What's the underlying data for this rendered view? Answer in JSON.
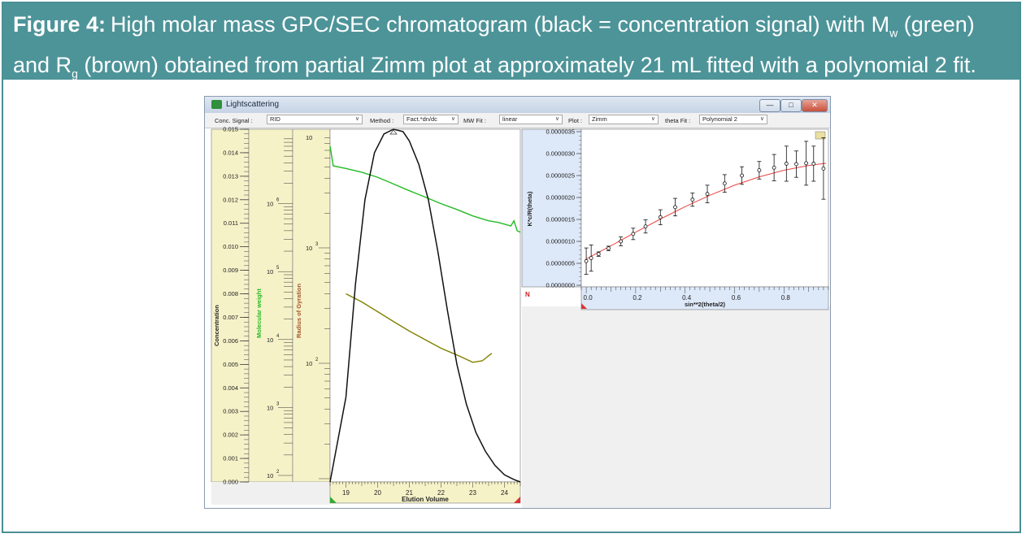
{
  "caption": {
    "label": "Figure 4:",
    "part1": "High molar mass GPC/SEC chromatogram (black = concentration signal) with M",
    "sub_w": "w",
    "part2": " (green)",
    "part3": "and R",
    "sub_g": "g",
    "part4": " (brown) obtained from partial Zimm plot at approximately 21 mL fitted with a polynomial 2 fit."
  },
  "window": {
    "title": "Lightscattering",
    "btn_min": "—",
    "btn_max": "□",
    "btn_close": "✕"
  },
  "toolbar": {
    "conc_label": "Conc. Signal :",
    "conc_value": "RID",
    "method_label": "Method :",
    "method_value": "Fact.*dn/dc",
    "mwfit_label": "MW Fit :",
    "mwfit_value": "linear",
    "plot_label": "Plot :",
    "plot_value": "Zimm",
    "thetafit_label": "theta Fit :",
    "thetafit_value": "Polynomial 2"
  },
  "colors": {
    "concentration": "#111111",
    "mw": "#22bb22",
    "rg": "#808000",
    "fit": "#ee4444",
    "caption_bg": "#4d9499"
  },
  "chart_data": [
    {
      "type": "line",
      "xlabel": "Elution Volume",
      "xlim": [
        18.5,
        24.5
      ],
      "x_ticks": [
        19,
        20,
        21,
        22,
        23,
        24
      ],
      "axes": {
        "concentration": {
          "label": "Concentration",
          "ticks": [
            "0.015",
            "0.014",
            "0.013",
            "0.012",
            "0.011",
            "0.010",
            "0.009",
            "0.008",
            "0.007",
            "0.006",
            "0.005",
            "0.004",
            "0.003",
            "0.002",
            "0.001",
            "0.000"
          ]
        },
        "molecular_weight": {
          "label": "Molecular weight",
          "scale": "log",
          "ylim": [
            100,
            10000000
          ],
          "ticks": [
            {
              "base": "10",
              "exp": "2"
            },
            {
              "base": "10",
              "exp": "3"
            },
            {
              "base": "10",
              "exp": "4"
            },
            {
              "base": "10",
              "exp": "5"
            },
            {
              "base": "10",
              "exp": "6"
            }
          ]
        },
        "radius_of_gyration": {
          "label": "Radius of Gyration",
          "scale": "log",
          "ylim": [
            10,
            10000
          ],
          "ticks": [
            {
              "base": "10",
              "exp": "2"
            },
            {
              "base": "10",
              "exp": "3"
            },
            {
              "base": "10",
              "exp": ""
            }
          ]
        }
      },
      "series": [
        {
          "key": "concentration",
          "x": [
            18.5,
            19.0,
            19.3,
            19.6,
            19.9,
            20.2,
            20.5,
            20.8,
            21.0,
            21.3,
            21.6,
            21.9,
            22.2,
            22.5,
            22.8,
            23.1,
            23.4,
            23.7,
            24.0,
            24.3,
            24.5
          ],
          "y": [
            0.0,
            0.0036,
            0.0084,
            0.012,
            0.014,
            0.0148,
            0.015,
            0.0149,
            0.0145,
            0.0135,
            0.012,
            0.0098,
            0.0073,
            0.005,
            0.0033,
            0.0021,
            0.0013,
            0.0007,
            0.0003,
            0.0001,
            0.0
          ]
        },
        {
          "key": "molecular_weight",
          "x": [
            18.5,
            18.6,
            19.0,
            19.5,
            20.0,
            20.5,
            21.0,
            21.5,
            22.0,
            22.5,
            23.0,
            23.5,
            23.8,
            24.0,
            24.2,
            24.3,
            24.4,
            24.5
          ],
          "y": [
            7000000,
            3600000,
            3300000,
            2900000,
            2450000,
            1950000,
            1550000,
            1250000,
            1000000,
            820000,
            660000,
            560000,
            530000,
            500000,
            470000,
            560000,
            400000,
            380000
          ]
        },
        {
          "key": "radius_of_gyration",
          "x": [
            19.0,
            19.5,
            20.0,
            20.5,
            21.0,
            21.5,
            22.0,
            22.5,
            23.0,
            23.3,
            23.6
          ],
          "y": [
            400,
            340,
            280,
            230,
            190,
            160,
            135,
            118,
            102,
            105,
            122
          ]
        }
      ]
    },
    {
      "type": "scatter",
      "title": "",
      "xlabel": "sin**2(theta/2)",
      "ylabel": "K*c/R(theta)",
      "xlim": [
        -0.02,
        0.98
      ],
      "ylim": [
        0,
        3.5e-06
      ],
      "x_ticks": [
        "0.0",
        "0.2",
        "0.4",
        "0.6",
        "0.8"
      ],
      "y_ticks": [
        "0.0000000",
        "0.0000005",
        "0.0000010",
        "0.0000015",
        "0.0000020",
        "0.0000025",
        "0.0000030",
        "0.0000035"
      ],
      "points": [
        {
          "x": 0.0,
          "y": 5.5e-07,
          "err": 3e-07
        },
        {
          "x": 0.02,
          "y": 6.2e-07,
          "err": 3e-07
        },
        {
          "x": 0.05,
          "y": 7.1e-07,
          "err": 5e-08
        },
        {
          "x": 0.09,
          "y": 8.4e-07,
          "err": 5e-08
        },
        {
          "x": 0.14,
          "y": 1e-06,
          "err": 1e-07
        },
        {
          "x": 0.19,
          "y": 1.17e-06,
          "err": 1.3e-07
        },
        {
          "x": 0.24,
          "y": 1.34e-06,
          "err": 1.5e-07
        },
        {
          "x": 0.3,
          "y": 1.55e-06,
          "err": 1.7e-07
        },
        {
          "x": 0.36,
          "y": 1.78e-06,
          "err": 2e-07
        },
        {
          "x": 0.43,
          "y": 1.95e-06,
          "err": 1.5e-07
        },
        {
          "x": 0.49,
          "y": 2.08e-06,
          "err": 2e-07
        },
        {
          "x": 0.56,
          "y": 2.32e-06,
          "err": 2e-07
        },
        {
          "x": 0.63,
          "y": 2.5e-06,
          "err": 2e-07
        },
        {
          "x": 0.7,
          "y": 2.62e-06,
          "err": 2e-07
        },
        {
          "x": 0.76,
          "y": 2.68e-06,
          "err": 3e-07
        },
        {
          "x": 0.81,
          "y": 2.77e-06,
          "err": 4e-07
        },
        {
          "x": 0.85,
          "y": 2.76e-06,
          "err": 3e-07
        },
        {
          "x": 0.89,
          "y": 2.78e-06,
          "err": 5e-07
        },
        {
          "x": 0.92,
          "y": 2.77e-06,
          "err": 4e-07
        },
        {
          "x": 0.96,
          "y": 2.66e-06,
          "err": 7e-07
        }
      ],
      "fit": {
        "x": [
          0.0,
          0.1,
          0.2,
          0.3,
          0.4,
          0.5,
          0.6,
          0.7,
          0.8,
          0.9,
          0.97
        ],
        "y": [
          6e-07,
          9e-07,
          1.21e-06,
          1.51e-06,
          1.79e-06,
          2.05e-06,
          2.28e-06,
          2.47e-06,
          2.62e-06,
          2.73e-06,
          2.78e-06
        ]
      }
    }
  ]
}
